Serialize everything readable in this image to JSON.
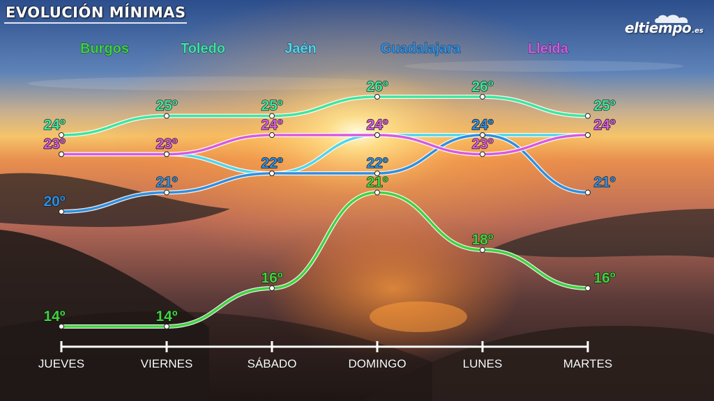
{
  "header": {
    "title": "EVOLUCIÓN MÍNIMAS",
    "logo_name": "eltiempo",
    "logo_tld": ".es"
  },
  "chart_data": {
    "type": "line",
    "categories": [
      "JUEVES",
      "VIERNES",
      "SÁBADO",
      "DOMINGO",
      "LUNES",
      "MARTES"
    ],
    "value_suffix": "º",
    "grid": false,
    "legend": "top",
    "series": [
      {
        "name": "Burgos",
        "color": "#3fd43f",
        "values": [
          14,
          14,
          16,
          21,
          18,
          16
        ]
      },
      {
        "name": "Toledo",
        "color": "#3ee6a0",
        "values": [
          24,
          25,
          25,
          26,
          26,
          25
        ]
      },
      {
        "name": "Jaén",
        "color": "#4fd6ec",
        "values": [
          23,
          23,
          22,
          24,
          24,
          24
        ]
      },
      {
        "name": "Guadalajara",
        "color": "#2f8fe0",
        "values": [
          20,
          21,
          22,
          22,
          24,
          21
        ]
      },
      {
        "name": "Lleida",
        "color": "#d65be0",
        "values": [
          23,
          23,
          24,
          24,
          23,
          24
        ]
      }
    ]
  }
}
